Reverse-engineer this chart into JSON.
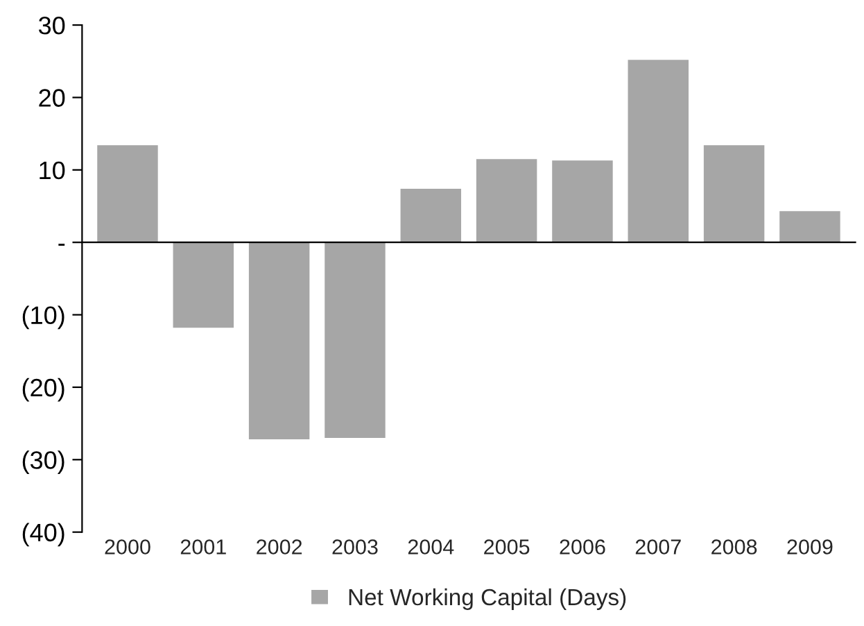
{
  "chart_data": {
    "type": "bar",
    "categories": [
      "2000",
      "2001",
      "2002",
      "2003",
      "2004",
      "2005",
      "2006",
      "2007",
      "2008",
      "2009"
    ],
    "series": [
      {
        "name": "Net Working Capital (Days)",
        "color": "#a6a6a6",
        "values": [
          13.4,
          -11.8,
          -27.2,
          -27.0,
          7.4,
          11.5,
          11.3,
          25.2,
          13.4,
          4.3
        ]
      }
    ],
    "ylim": [
      -40,
      30
    ],
    "yticks": [
      {
        "value": -40,
        "label": "(40)"
      },
      {
        "value": -30,
        "label": "(30)"
      },
      {
        "value": -20,
        "label": "(20)"
      },
      {
        "value": -10,
        "label": "(10)"
      },
      {
        "value": 0,
        "label": "-"
      },
      10,
      20,
      30
    ],
    "legend": "bottom"
  }
}
